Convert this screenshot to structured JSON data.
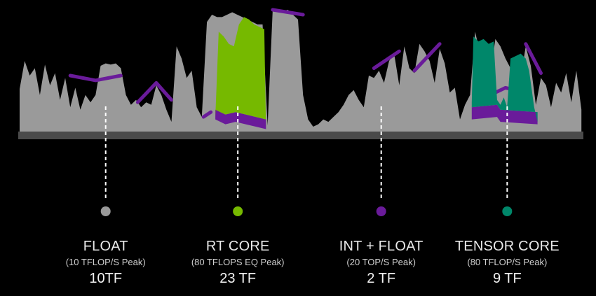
{
  "chart_data": {
    "type": "area",
    "x_range": [
      0,
      100
    ],
    "y_range": [
      0,
      100
    ],
    "colors": {
      "background": "#000000",
      "baseline": "#4a4a4a",
      "float": "#9a9a9a",
      "rt_core": "#76b900",
      "int_float": "#6a1b9a",
      "tensor_core": "#00876a",
      "leader_line": "#ffffff"
    },
    "series": [
      {
        "key": "float",
        "title": "FLOAT",
        "subtitle": "(10 TFLOP/S Peak)",
        "value_label": "10TF",
        "marker_x": 15.3,
        "color": "#9a9a9a"
      },
      {
        "key": "rt_core",
        "title": "RT CORE",
        "subtitle": "(80 TFLOPS EQ Peak)",
        "value_label": "23 TF",
        "marker_x": 38.8,
        "color": "#76b900"
      },
      {
        "key": "int_float",
        "title": "INT + FLOAT",
        "subtitle": "(20 TOP/S Peak)",
        "value_label": "2 TF",
        "marker_x": 64.3,
        "color": "#6a1b9a"
      },
      {
        "key": "tensor_core",
        "title": "TENSOR CORE",
        "subtitle": "(80 TFLOP/S Peak)",
        "value_label": "9 TF",
        "marker_x": 86.7,
        "color": "#00876a"
      }
    ],
    "float_profile": [
      [
        0.0,
        35
      ],
      [
        0.9,
        58
      ],
      [
        1.8,
        46
      ],
      [
        2.7,
        52
      ],
      [
        3.6,
        30
      ],
      [
        4.5,
        55
      ],
      [
        5.4,
        38
      ],
      [
        6.3,
        48
      ],
      [
        7.2,
        26
      ],
      [
        8.1,
        44
      ],
      [
        9.0,
        20
      ],
      [
        9.9,
        36
      ],
      [
        10.8,
        18
      ],
      [
        11.7,
        30
      ],
      [
        12.6,
        24
      ],
      [
        13.5,
        30
      ],
      [
        14.4,
        54
      ],
      [
        15.3,
        56
      ],
      [
        16.2,
        55
      ],
      [
        17.1,
        56
      ],
      [
        18.0,
        52
      ],
      [
        18.9,
        30
      ],
      [
        19.8,
        22
      ],
      [
        20.7,
        26
      ],
      [
        21.6,
        20
      ],
      [
        22.5,
        24
      ],
      [
        23.4,
        22
      ],
      [
        24.3,
        38
      ],
      [
        25.2,
        30
      ],
      [
        26.1,
        18
      ],
      [
        27.0,
        8
      ],
      [
        27.9,
        70
      ],
      [
        28.8,
        60
      ],
      [
        29.7,
        44
      ],
      [
        30.6,
        50
      ],
      [
        31.5,
        20
      ],
      [
        32.4,
        12
      ],
      [
        33.3,
        90
      ],
      [
        34.2,
        96
      ],
      [
        35.1,
        94
      ],
      [
        36.0,
        94
      ],
      [
        36.9,
        96
      ],
      [
        37.8,
        98
      ],
      [
        38.7,
        96
      ],
      [
        39.6,
        94
      ],
      [
        40.5,
        92
      ],
      [
        41.4,
        90
      ],
      [
        42.3,
        88
      ],
      [
        43.2,
        88
      ],
      [
        44.1,
        5
      ],
      [
        45.0,
        100
      ],
      [
        45.9,
        98
      ],
      [
        46.8,
        99
      ],
      [
        47.7,
        100
      ],
      [
        48.6,
        96
      ],
      [
        49.5,
        92
      ],
      [
        50.4,
        30
      ],
      [
        51.3,
        10
      ],
      [
        52.2,
        4
      ],
      [
        53.1,
        6
      ],
      [
        54.0,
        10
      ],
      [
        54.9,
        8
      ],
      [
        55.8,
        12
      ],
      [
        56.7,
        16
      ],
      [
        57.6,
        22
      ],
      [
        58.5,
        30
      ],
      [
        59.4,
        34
      ],
      [
        60.3,
        26
      ],
      [
        61.2,
        20
      ],
      [
        62.1,
        46
      ],
      [
        63.0,
        44
      ],
      [
        63.9,
        50
      ],
      [
        64.8,
        40
      ],
      [
        65.7,
        58
      ],
      [
        66.6,
        64
      ],
      [
        67.5,
        38
      ],
      [
        68.4,
        70
      ],
      [
        69.3,
        52
      ],
      [
        70.2,
        48
      ],
      [
        71.1,
        72
      ],
      [
        72.0,
        66
      ],
      [
        72.9,
        58
      ],
      [
        73.8,
        40
      ],
      [
        74.7,
        68
      ],
      [
        75.6,
        56
      ],
      [
        76.5,
        32
      ],
      [
        77.4,
        36
      ],
      [
        78.3,
        10
      ],
      [
        79.2,
        22
      ],
      [
        80.1,
        30
      ],
      [
        81.0,
        82
      ],
      [
        81.9,
        64
      ],
      [
        82.8,
        52
      ],
      [
        83.7,
        48
      ],
      [
        84.6,
        76
      ],
      [
        85.5,
        70
      ],
      [
        86.4,
        60
      ],
      [
        87.3,
        52
      ],
      [
        88.2,
        30
      ],
      [
        89.1,
        44
      ],
      [
        90.0,
        70
      ],
      [
        90.9,
        54
      ],
      [
        91.8,
        22
      ],
      [
        92.7,
        44
      ],
      [
        93.6,
        38
      ],
      [
        94.5,
        20
      ],
      [
        95.4,
        40
      ],
      [
        96.3,
        32
      ],
      [
        97.2,
        48
      ],
      [
        98.1,
        24
      ],
      [
        99.0,
        50
      ],
      [
        99.9,
        18
      ]
    ],
    "purple_caps": [
      [
        [
          9.0,
          46
        ],
        [
          13.5,
          42
        ],
        [
          18.0,
          46
        ]
      ],
      [
        [
          21.0,
          24
        ],
        [
          24.3,
          40
        ],
        [
          27.0,
          26
        ]
      ],
      [
        [
          32.7,
          12
        ],
        [
          34.0,
          16
        ]
      ],
      [
        [
          45.0,
          100
        ],
        [
          50.4,
          96
        ]
      ],
      [
        [
          63.0,
          52
        ],
        [
          67.5,
          66
        ]
      ],
      [
        [
          70.2,
          50
        ],
        [
          74.7,
          72
        ]
      ],
      [
        [
          84.6,
          32
        ],
        [
          86.4,
          36
        ],
        [
          88.2,
          34
        ]
      ],
      [
        [
          90.0,
          72
        ],
        [
          92.7,
          48
        ]
      ]
    ],
    "rt_core_block": [
      [
        34.8,
        12
      ],
      [
        35.4,
        82
      ],
      [
        36.3,
        78
      ],
      [
        37.2,
        72
      ],
      [
        38.1,
        70
      ],
      [
        39.0,
        88
      ],
      [
        39.9,
        94
      ],
      [
        40.8,
        92
      ],
      [
        41.7,
        88
      ],
      [
        42.6,
        86
      ],
      [
        43.5,
        84
      ],
      [
        43.8,
        4
      ]
    ],
    "rt_core_under": [
      [
        34.8,
        10
      ],
      [
        36.6,
        6
      ],
      [
        38.4,
        8
      ],
      [
        40.2,
        6
      ],
      [
        42.0,
        4
      ],
      [
        43.8,
        2
      ]
    ],
    "tensor_block": [
      [
        80.4,
        24
      ],
      [
        80.7,
        78
      ],
      [
        81.6,
        74
      ],
      [
        82.5,
        76
      ],
      [
        83.4,
        72
      ],
      [
        84.3,
        74
      ],
      [
        84.9,
        26
      ],
      [
        85.5,
        22
      ],
      [
        86.1,
        28
      ],
      [
        86.7,
        20
      ],
      [
        87.3,
        60
      ],
      [
        88.2,
        62
      ],
      [
        89.1,
        64
      ],
      [
        90.0,
        60
      ],
      [
        90.6,
        50
      ],
      [
        91.5,
        20
      ],
      [
        92.1,
        8
      ]
    ],
    "tensor_under": [
      [
        80.4,
        10
      ],
      [
        84.9,
        12
      ],
      [
        85.5,
        8
      ],
      [
        92.1,
        6
      ]
    ]
  }
}
